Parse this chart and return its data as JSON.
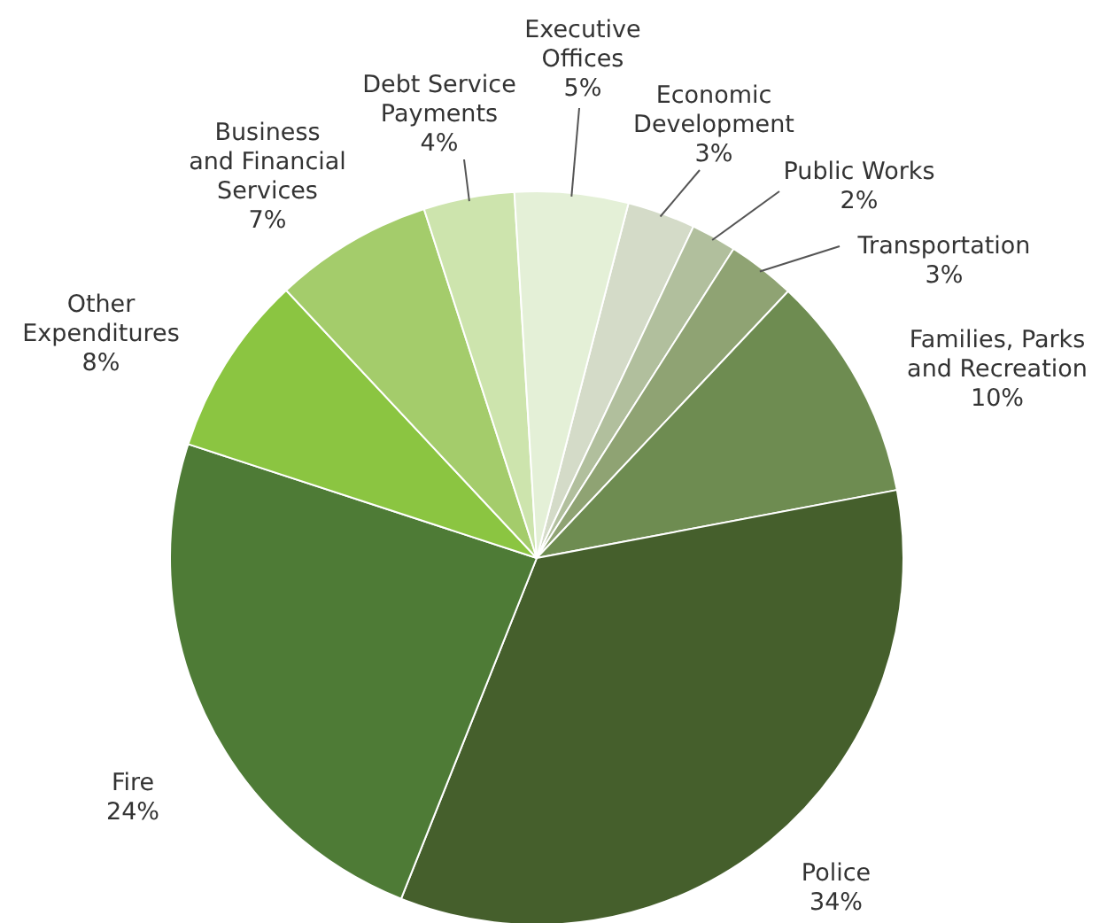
{
  "chart_data": {
    "type": "pie",
    "categories": [
      "Economic\nDevelopment",
      "Public Works",
      "Transportation",
      "Families, Parks\nand Recreation",
      "Police",
      "Fire",
      "Other\nExpenditures",
      "Business\nand Financial\nServices",
      "Debt Service\nPayments",
      "Executive\nOffices"
    ],
    "values": [
      3,
      2,
      3,
      10,
      34,
      24,
      8,
      7,
      4,
      5
    ],
    "value_labels": [
      "3%",
      "2%",
      "3%",
      "10%",
      "34%",
      "24%",
      "8%",
      "7%",
      "4%",
      "5%"
    ],
    "colors": [
      "#d4dbc8",
      "#b1bf9d",
      "#8fa373",
      "#6e8c51",
      "#455f2c",
      "#4e7b36",
      "#8bc541",
      "#a4cc6b",
      "#cde4ad",
      "#e4f0d7"
    ]
  }
}
